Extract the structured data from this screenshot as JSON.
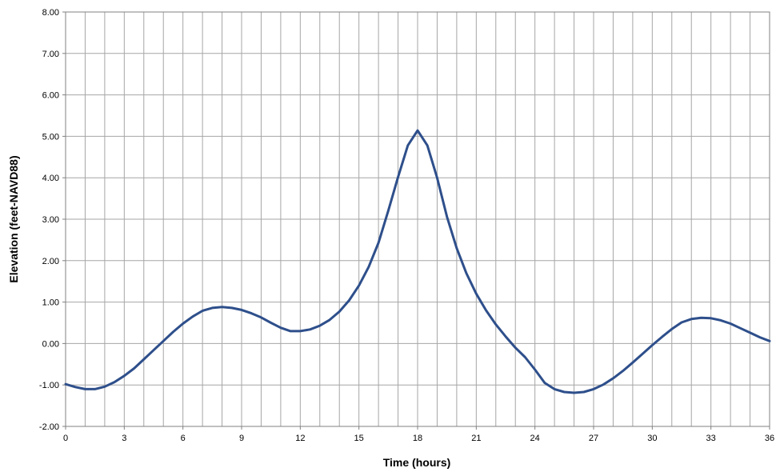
{
  "chart_data": {
    "type": "line",
    "title": "",
    "xlabel": "Time (hours)",
    "ylabel": "Elevation (feet-NAVD88)",
    "xlim": [
      0,
      36
    ],
    "ylim": [
      -2,
      8
    ],
    "x_ticks": [
      0,
      3,
      6,
      9,
      12,
      15,
      18,
      21,
      24,
      27,
      30,
      33,
      36
    ],
    "x_tick_labels": [
      "0",
      "3",
      "6",
      "9",
      "12",
      "15",
      "18",
      "21",
      "24",
      "27",
      "30",
      "33",
      "36"
    ],
    "y_ticks": [
      -2,
      -1,
      0,
      1,
      2,
      3,
      4,
      5,
      6,
      7,
      8
    ],
    "y_tick_labels": [
      "-2.00",
      "-1.00",
      "0.00",
      "1.00",
      "2.00",
      "3.00",
      "4.00",
      "5.00",
      "6.00",
      "7.00",
      "8.00"
    ],
    "grid": true,
    "x_grid_step": 1,
    "legend": "none",
    "line_color": "#2E4F8B",
    "grid_color": "#A6A6A6",
    "series": [
      {
        "x": [
          0,
          0.5,
          1,
          1.5,
          2,
          2.5,
          3,
          3.5,
          4,
          4.5,
          5,
          5.5,
          6,
          6.5,
          7,
          7.5,
          8,
          8.5,
          9,
          9.5,
          10,
          10.5,
          11,
          11.5,
          12,
          12.5,
          13,
          13.5,
          14,
          14.5,
          15,
          15.5,
          16,
          16.5,
          17,
          17.5,
          18,
          18.5,
          19,
          19.5,
          20,
          20.5,
          21,
          21.5,
          22,
          22.5,
          23,
          23.5,
          24,
          24.5,
          25,
          25.5,
          26,
          26.5,
          27,
          27.5,
          28,
          28.5,
          29,
          29.5,
          30,
          30.5,
          31,
          31.5,
          32,
          32.5,
          33,
          33.5,
          34,
          34.5,
          35,
          35.5,
          36
        ],
        "values": [
          -0.98,
          -1.05,
          -1.1,
          -1.1,
          -1.04,
          -0.93,
          -0.78,
          -0.6,
          -0.38,
          -0.16,
          0.06,
          0.28,
          0.48,
          0.65,
          0.79,
          0.86,
          0.88,
          0.86,
          0.81,
          0.73,
          0.63,
          0.5,
          0.38,
          0.3,
          0.3,
          0.34,
          0.43,
          0.57,
          0.77,
          1.04,
          1.4,
          1.85,
          2.43,
          3.2,
          4.02,
          4.78,
          5.14,
          4.78,
          4.0,
          3.06,
          2.3,
          1.69,
          1.2,
          0.8,
          0.46,
          0.17,
          -0.1,
          -0.33,
          -0.63,
          -0.95,
          -1.1,
          -1.17,
          -1.19,
          -1.17,
          -1.1,
          -0.99,
          -0.84,
          -0.66,
          -0.46,
          -0.25,
          -0.04,
          0.16,
          0.35,
          0.51,
          0.59,
          0.62,
          0.61,
          0.56,
          0.48,
          0.37,
          0.26,
          0.15,
          0.06
        ]
      }
    ]
  }
}
